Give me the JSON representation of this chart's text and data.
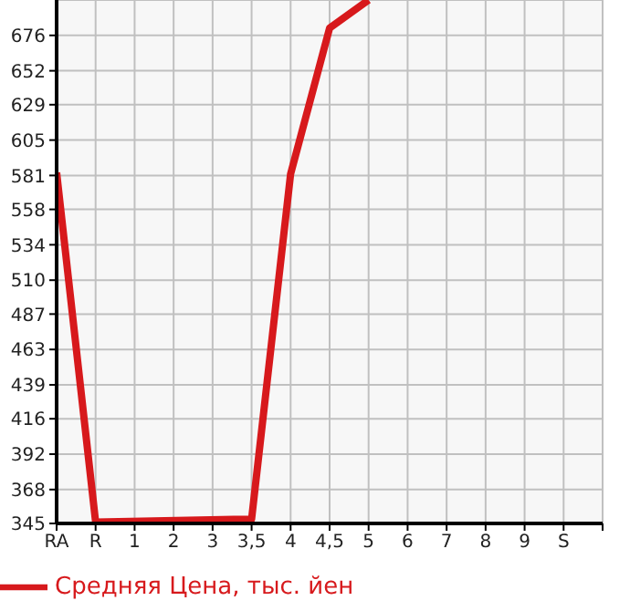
{
  "chart_data": {
    "type": "line",
    "categories": [
      "RA",
      "R",
      "1",
      "2",
      "3",
      "3,5",
      "4",
      "4,5",
      "5",
      "6",
      "7",
      "8",
      "9",
      "S",
      null
    ],
    "series": [
      {
        "name": "Средняя Цена, тыс. йен",
        "color": "#d7191c",
        "values": [
          583,
          346,
          null,
          null,
          null,
          348,
          582,
          681,
          700,
          null,
          null,
          null,
          null,
          null,
          null
        ]
      }
    ],
    "ylim": [
      345,
      700
    ],
    "yticks": [
      345,
      368,
      392,
      416,
      439,
      463,
      487,
      510,
      534,
      558,
      581,
      605,
      629,
      652,
      676
    ],
    "grid": true,
    "legend": "bottom left",
    "marker": "none"
  }
}
